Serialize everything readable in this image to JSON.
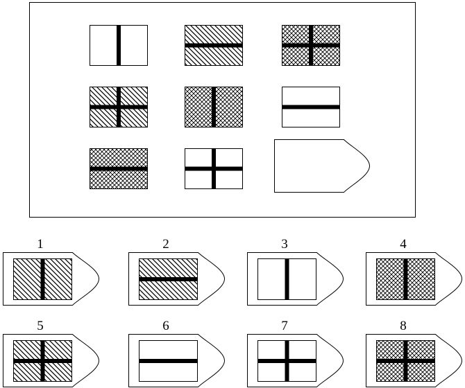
{
  "matrix": {
    "cells": [
      {
        "pattern": "blank",
        "bar": "vertical"
      },
      {
        "pattern": "diagonal",
        "bar": "horizontal"
      },
      {
        "pattern": "crosshatch",
        "bar": "cross"
      },
      {
        "pattern": "diagonal",
        "bar": "cross"
      },
      {
        "pattern": "crosshatch",
        "bar": "vertical"
      },
      {
        "pattern": "blank",
        "bar": "horizontal"
      },
      {
        "pattern": "crosshatch",
        "bar": "horizontal"
      },
      {
        "pattern": "blank",
        "bar": "cross"
      },
      {
        "pattern": "missing",
        "bar": "none"
      }
    ]
  },
  "options": [
    {
      "label": "1",
      "pattern": "diagonal",
      "bar": "vertical"
    },
    {
      "label": "2",
      "pattern": "diagonal",
      "bar": "horizontal"
    },
    {
      "label": "3",
      "pattern": "blank",
      "bar": "vertical"
    },
    {
      "label": "4",
      "pattern": "crosshatch",
      "bar": "vertical"
    },
    {
      "label": "5",
      "pattern": "diagonal",
      "bar": "cross"
    },
    {
      "label": "6",
      "pattern": "blank",
      "bar": "horizontal"
    },
    {
      "label": "7",
      "pattern": "blank",
      "bar": "cross"
    },
    {
      "label": "8",
      "pattern": "crosshatch",
      "bar": "cross"
    }
  ],
  "colors": {
    "stroke": "#000000",
    "fill": "#ffffff"
  }
}
